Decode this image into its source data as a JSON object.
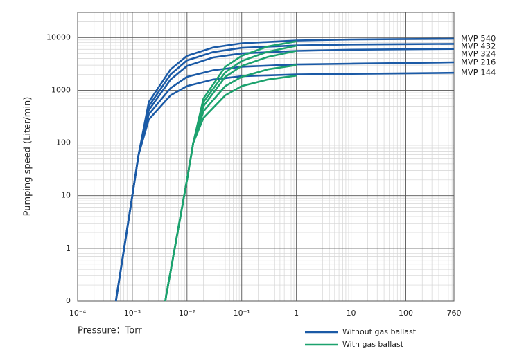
{
  "chart_data": {
    "type": "line",
    "ylabel": "Pumping speed (Liter/min)",
    "xlabel": "Pressure：Torr",
    "xscale": "log",
    "yscale": "log",
    "grid": true,
    "xlim": [
      0.0001,
      760
    ],
    "ylim": [
      0,
      30000
    ],
    "xticks": [
      {
        "value": 0.0001,
        "label": "10⁻⁴"
      },
      {
        "value": 0.001,
        "label": "10⁻³"
      },
      {
        "value": 0.01,
        "label": "10⁻²"
      },
      {
        "value": 0.1,
        "label": "10⁻¹"
      },
      1,
      10,
      100,
      760
    ],
    "yticks": [
      0,
      1,
      10,
      100,
      1000,
      10000
    ],
    "groups": [
      {
        "name": "Without gas ballast",
        "color": "#1b5aa6"
      },
      {
        "name": "With gas ballast",
        "color": "#1ca26e"
      }
    ],
    "series": [
      {
        "name": "MVP 540",
        "group": 0,
        "x": [
          0.0005,
          0.001,
          0.0013,
          0.002,
          0.005,
          0.01,
          0.03,
          0.1,
          1,
          10,
          100,
          760
        ],
        "values": [
          0,
          10,
          60,
          600,
          2500,
          4500,
          6500,
          7800,
          8800,
          9200,
          9400,
          9500
        ]
      },
      {
        "name": "MVP 432",
        "group": 0,
        "x": [
          0.0005,
          0.001,
          0.0013,
          0.002,
          0.005,
          0.01,
          0.03,
          0.1,
          1,
          10,
          100,
          760
        ],
        "values": [
          0,
          10,
          60,
          500,
          2000,
          3700,
          5300,
          6400,
          7100,
          7400,
          7500,
          7600
        ]
      },
      {
        "name": "MVP 324",
        "group": 0,
        "x": [
          0.0005,
          0.001,
          0.0013,
          0.002,
          0.005,
          0.01,
          0.03,
          0.1,
          1,
          10,
          100,
          760
        ],
        "values": [
          0,
          10,
          60,
          420,
          1600,
          2900,
          4200,
          5000,
          5600,
          5900,
          6000,
          6100
        ]
      },
      {
        "name": "MVP 216",
        "group": 0,
        "x": [
          0.0005,
          0.001,
          0.0013,
          0.002,
          0.005,
          0.01,
          0.03,
          0.1,
          1,
          10,
          100,
          760
        ],
        "values": [
          0,
          10,
          60,
          350,
          1100,
          1800,
          2400,
          2800,
          3100,
          3200,
          3300,
          3400
        ]
      },
      {
        "name": "MVP 144",
        "group": 0,
        "x": [
          0.0005,
          0.001,
          0.0013,
          0.002,
          0.005,
          0.01,
          0.03,
          0.1,
          1,
          10,
          100,
          760
        ],
        "values": [
          0,
          10,
          60,
          280,
          800,
          1200,
          1600,
          1850,
          2000,
          2050,
          2100,
          2150
        ]
      },
      {
        "group": 1,
        "x": [
          0.004,
          0.01,
          0.013,
          0.02,
          0.05,
          0.1,
          0.3,
          1
        ],
        "values": [
          0,
          20,
          100,
          700,
          2800,
          4500,
          6800,
          8500
        ]
      },
      {
        "group": 1,
        "x": [
          0.004,
          0.01,
          0.013,
          0.02,
          0.05,
          0.1,
          0.3,
          1
        ],
        "values": [
          0,
          20,
          100,
          600,
          2200,
          3600,
          5400,
          7000
        ]
      },
      {
        "group": 1,
        "x": [
          0.004,
          0.01,
          0.013,
          0.02,
          0.05,
          0.1,
          0.3,
          1
        ],
        "values": [
          0,
          20,
          100,
          500,
          1800,
          2900,
          4300,
          5600
        ]
      },
      {
        "group": 1,
        "x": [
          0.004,
          0.01,
          0.013,
          0.02,
          0.05,
          0.1,
          0.3,
          1
        ],
        "values": [
          0,
          20,
          100,
          400,
          1200,
          1800,
          2500,
          3000
        ]
      },
      {
        "group": 1,
        "x": [
          0.004,
          0.01,
          0.013,
          0.02,
          0.05,
          0.1,
          0.3,
          1
        ],
        "values": [
          0,
          20,
          100,
          300,
          800,
          1200,
          1600,
          1900
        ]
      }
    ]
  }
}
